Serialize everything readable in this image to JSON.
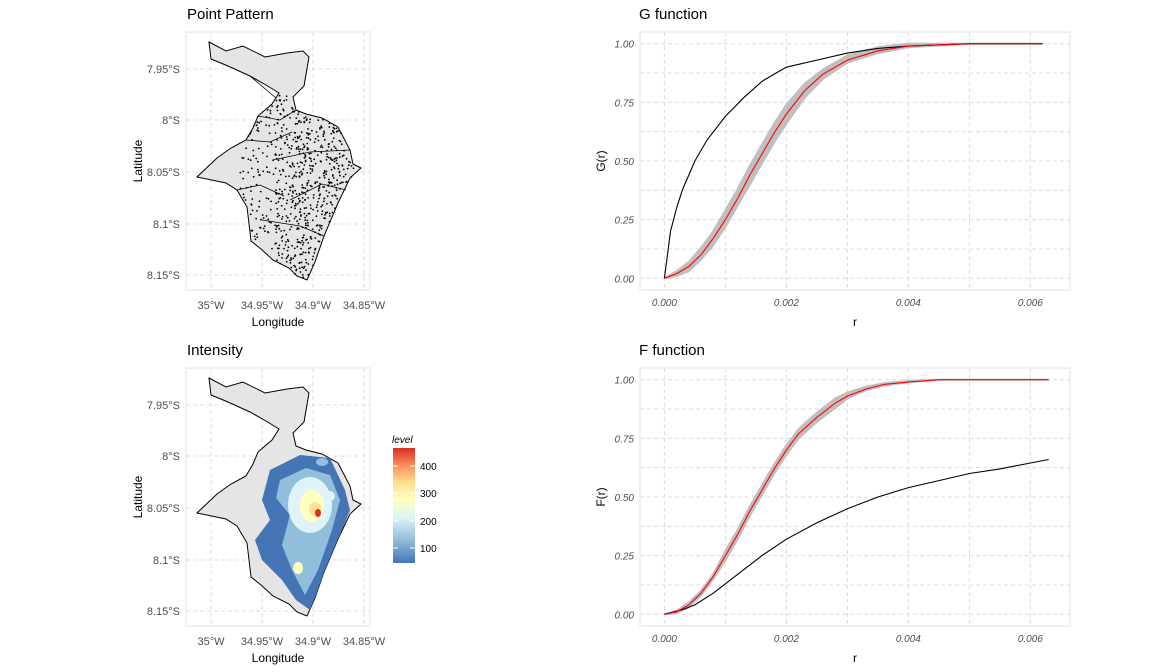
{
  "panels": {
    "point_pattern": {
      "title": "Point Pattern",
      "xlabel": "Longitude",
      "ylabel": "Latitude",
      "xticks": [
        "35°W",
        "34.95°W",
        "34.9°W",
        "34.85°W"
      ],
      "yticks": [
        "7.95°S",
        "8°S",
        "8.05°S",
        "8.1°S",
        "8.15°S"
      ]
    },
    "intensity": {
      "title": "Intensity",
      "xlabel": "Longitude",
      "ylabel": "Latitude",
      "xticks": [
        "35°W",
        "34.95°W",
        "34.9°W",
        "34.85°W"
      ],
      "yticks": [
        "7.95°S",
        "8°S",
        "8.05°S",
        "8.1°S",
        "8.15°S"
      ],
      "legend": {
        "title": "level",
        "ticks": [
          "100",
          "200",
          "300",
          "400"
        ],
        "colors": [
          "#4575b4",
          "#91bfdb",
          "#e0f3f8",
          "#ffffbf",
          "#fee090",
          "#fc8d59",
          "#d73027"
        ]
      }
    }
  },
  "chart_data": [
    {
      "type": "line",
      "title": "G function",
      "xlabel": "r",
      "ylabel": "G(r)",
      "xlim": [
        -0.0004,
        0.00665
      ],
      "ylim": [
        -0.05,
        1.05
      ],
      "xticks": [
        "0.000",
        "0.002",
        "0.004",
        "0.006"
      ],
      "yticks": [
        "0.00",
        "0.25",
        "0.50",
        "0.75",
        "1.00"
      ],
      "grid": true,
      "series": [
        {
          "color": "#000000",
          "x": [
            0,
            0.0001,
            0.0002,
            0.0003,
            0.0005,
            0.0007,
            0.001,
            0.0013,
            0.0016,
            0.002,
            0.0025,
            0.003,
            0.0035,
            0.004,
            0.005,
            0.0062
          ],
          "y": [
            0,
            0.2,
            0.3,
            0.38,
            0.5,
            0.59,
            0.69,
            0.77,
            0.84,
            0.9,
            0.93,
            0.96,
            0.98,
            0.99,
            1.0,
            1.0
          ]
        },
        {
          "color": "#ff0000",
          "x": [
            0,
            0.0002,
            0.0004,
            0.0006,
            0.0008,
            0.001,
            0.0012,
            0.0014,
            0.0016,
            0.0018,
            0.002,
            0.0023,
            0.0026,
            0.003,
            0.0035,
            0.004,
            0.005,
            0.0062
          ],
          "y": [
            0,
            0.02,
            0.05,
            0.1,
            0.17,
            0.25,
            0.34,
            0.44,
            0.53,
            0.62,
            0.7,
            0.8,
            0.87,
            0.93,
            0.97,
            0.99,
            1.0,
            1.0
          ]
        }
      ],
      "envelope": {
        "color": "#bfbfbf",
        "x": [
          0,
          0.0002,
          0.0004,
          0.0006,
          0.0008,
          0.001,
          0.0012,
          0.0014,
          0.0016,
          0.0018,
          0.002,
          0.0023,
          0.0026,
          0.003,
          0.0035,
          0.004,
          0.005,
          0.0062
        ],
        "lo": [
          0,
          0.01,
          0.03,
          0.08,
          0.14,
          0.22,
          0.31,
          0.4,
          0.49,
          0.58,
          0.66,
          0.77,
          0.85,
          0.92,
          0.96,
          0.985,
          1.0,
          1.0
        ],
        "hi": [
          0,
          0.03,
          0.07,
          0.13,
          0.2,
          0.29,
          0.38,
          0.48,
          0.57,
          0.66,
          0.74,
          0.83,
          0.89,
          0.95,
          0.985,
          1.0,
          1.0,
          1.0
        ]
      }
    },
    {
      "type": "line",
      "title": "F function",
      "xlabel": "r",
      "ylabel": "F(r)",
      "xlim": [
        -0.0004,
        0.00665
      ],
      "ylim": [
        -0.05,
        1.05
      ],
      "xticks": [
        "0.000",
        "0.002",
        "0.004",
        "0.006"
      ],
      "yticks": [
        "0.00",
        "0.25",
        "0.50",
        "0.75",
        "1.00"
      ],
      "grid": true,
      "series": [
        {
          "color": "#000000",
          "x": [
            0,
            0.0003,
            0.0005,
            0.0008,
            0.001,
            0.0013,
            0.0016,
            0.002,
            0.0025,
            0.003,
            0.0035,
            0.004,
            0.0045,
            0.005,
            0.0055,
            0.006,
            0.0063
          ],
          "y": [
            0,
            0.02,
            0.04,
            0.09,
            0.13,
            0.19,
            0.25,
            0.32,
            0.39,
            0.45,
            0.5,
            0.54,
            0.57,
            0.6,
            0.62,
            0.645,
            0.66
          ]
        },
        {
          "color": "#ff0000",
          "x": [
            0,
            0.0002,
            0.0004,
            0.0006,
            0.0008,
            0.001,
            0.0012,
            0.0014,
            0.0016,
            0.0018,
            0.002,
            0.0022,
            0.0025,
            0.0028,
            0.003,
            0.0033,
            0.0036,
            0.004,
            0.0045,
            0.005,
            0.0063
          ],
          "y": [
            0,
            0.01,
            0.04,
            0.09,
            0.16,
            0.25,
            0.34,
            0.44,
            0.53,
            0.62,
            0.7,
            0.77,
            0.84,
            0.9,
            0.93,
            0.96,
            0.98,
            0.99,
            1.0,
            1.0,
            1.0
          ]
        }
      ],
      "envelope": {
        "color": "#bfbfbf",
        "x": [
          0,
          0.0002,
          0.0004,
          0.0006,
          0.0008,
          0.001,
          0.0012,
          0.0014,
          0.0016,
          0.0018,
          0.002,
          0.0022,
          0.0025,
          0.0028,
          0.003,
          0.0033,
          0.0036,
          0.004,
          0.0045,
          0.005,
          0.0063
        ],
        "lo": [
          0,
          0.005,
          0.03,
          0.08,
          0.15,
          0.23,
          0.32,
          0.42,
          0.51,
          0.6,
          0.68,
          0.75,
          0.82,
          0.88,
          0.92,
          0.955,
          0.975,
          0.99,
          1.0,
          1.0,
          1.0
        ],
        "hi": [
          0,
          0.015,
          0.05,
          0.1,
          0.17,
          0.27,
          0.36,
          0.46,
          0.55,
          0.64,
          0.72,
          0.79,
          0.86,
          0.92,
          0.945,
          0.97,
          0.985,
          0.995,
          1.0,
          1.0,
          1.0
        ]
      }
    }
  ]
}
